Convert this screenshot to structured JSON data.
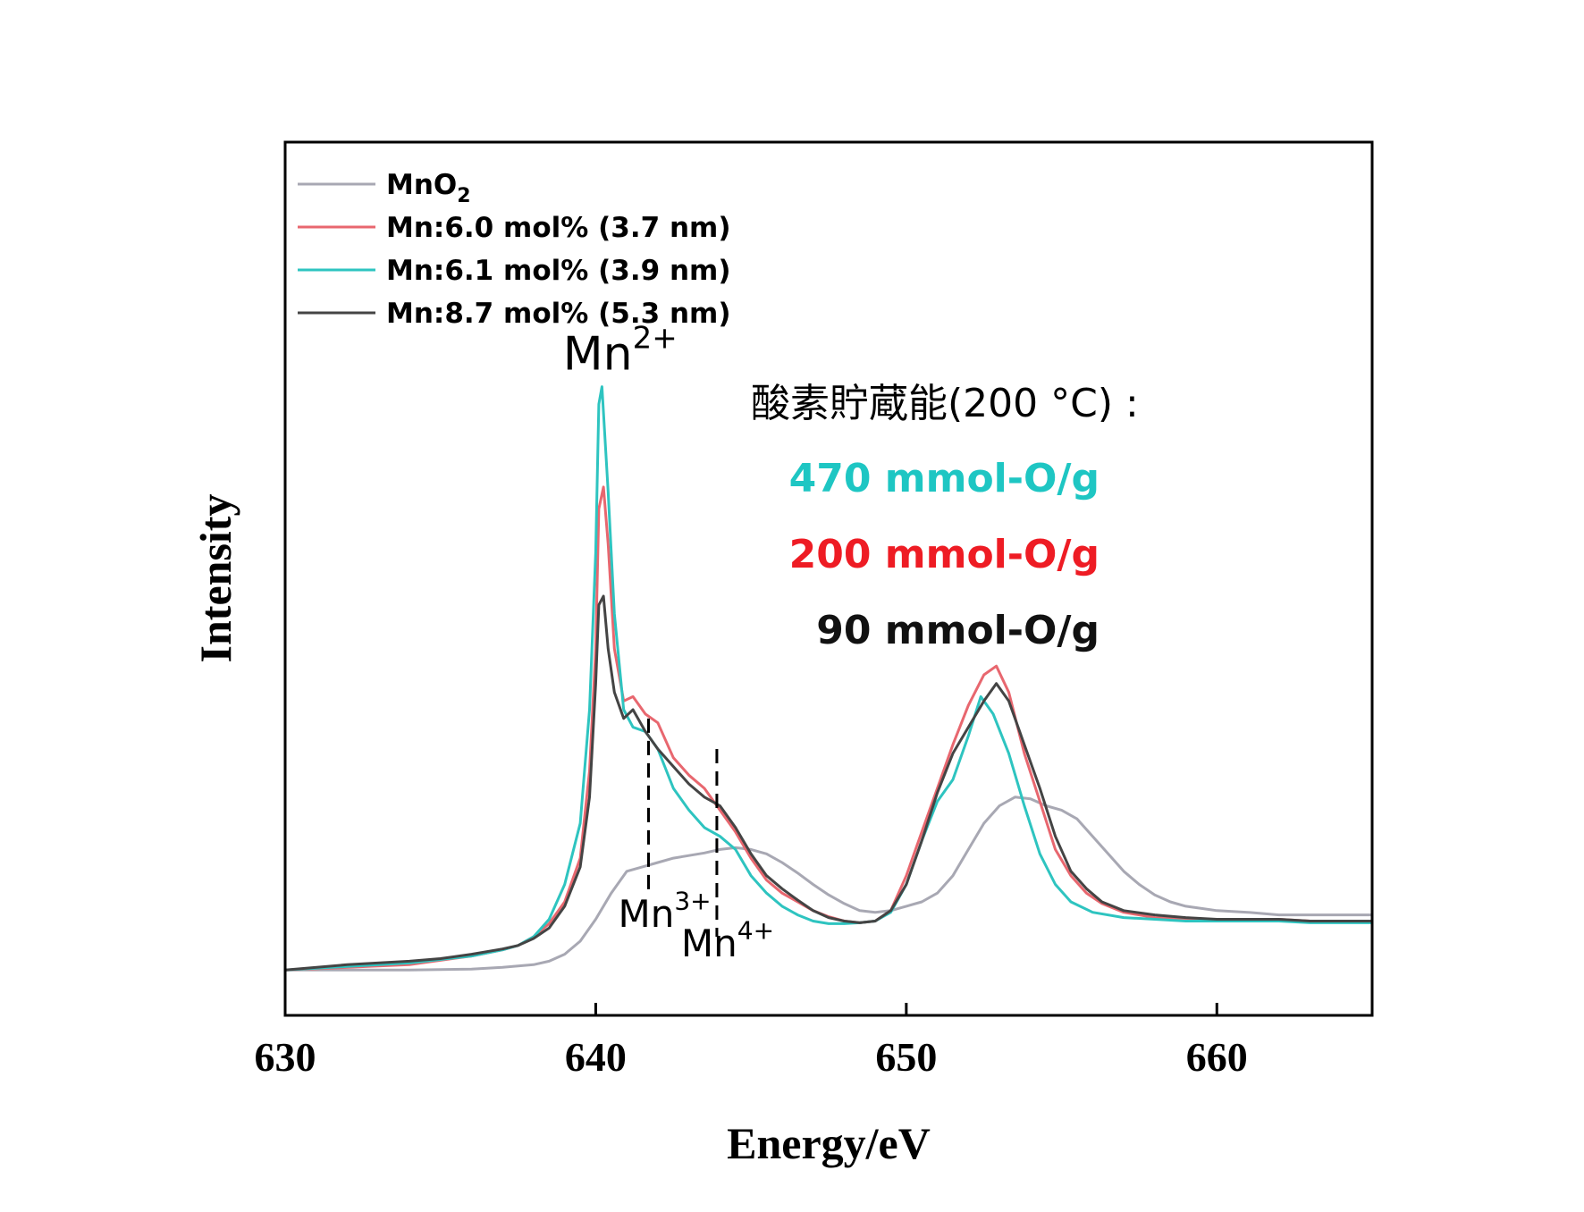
{
  "chart_data": {
    "type": "line",
    "title": "",
    "xlabel": "Energy/eV",
    "ylabel": "Intensity",
    "xlim": [
      630,
      665
    ],
    "ylim": [
      0,
      1.0
    ],
    "xticks": [
      630,
      640,
      650,
      660
    ],
    "grid": false,
    "legend_position": "top-left",
    "series": [
      {
        "name": "MnO",
        "name_sub": "2",
        "color": "#a8a8b3",
        "points": [
          [
            630,
            0.052
          ],
          [
            632,
            0.052
          ],
          [
            634,
            0.052
          ],
          [
            636,
            0.053
          ],
          [
            637,
            0.055
          ],
          [
            638,
            0.058
          ],
          [
            638.5,
            0.062
          ],
          [
            639,
            0.07
          ],
          [
            639.5,
            0.085
          ],
          [
            640,
            0.11
          ],
          [
            640.5,
            0.14
          ],
          [
            641,
            0.165
          ],
          [
            641.5,
            0.17
          ],
          [
            642,
            0.175
          ],
          [
            642.5,
            0.18
          ],
          [
            643,
            0.183
          ],
          [
            643.5,
            0.186
          ],
          [
            644,
            0.19
          ],
          [
            644.5,
            0.192
          ],
          [
            645,
            0.19
          ],
          [
            645.5,
            0.185
          ],
          [
            646,
            0.175
          ],
          [
            646.5,
            0.163
          ],
          [
            647,
            0.15
          ],
          [
            647.5,
            0.138
          ],
          [
            648,
            0.128
          ],
          [
            648.5,
            0.12
          ],
          [
            649,
            0.118
          ],
          [
            649.5,
            0.12
          ],
          [
            650,
            0.125
          ],
          [
            650.5,
            0.13
          ],
          [
            651,
            0.14
          ],
          [
            651.5,
            0.16
          ],
          [
            652,
            0.19
          ],
          [
            652.5,
            0.22
          ],
          [
            653,
            0.24
          ],
          [
            653.5,
            0.25
          ],
          [
            654,
            0.248
          ],
          [
            654.5,
            0.24
          ],
          [
            655,
            0.235
          ],
          [
            655.5,
            0.225
          ],
          [
            656,
            0.205
          ],
          [
            656.5,
            0.185
          ],
          [
            657,
            0.165
          ],
          [
            657.5,
            0.15
          ],
          [
            658,
            0.138
          ],
          [
            658.5,
            0.13
          ],
          [
            659,
            0.125
          ],
          [
            660,
            0.12
          ],
          [
            661,
            0.118
          ],
          [
            662,
            0.115
          ],
          [
            663,
            0.115
          ],
          [
            665,
            0.115
          ]
        ]
      },
      {
        "name": "Mn:6.0 mol% (3.7 nm)",
        "color": "#e8676f",
        "points": [
          [
            630,
            0.052
          ],
          [
            632,
            0.055
          ],
          [
            634,
            0.058
          ],
          [
            635,
            0.063
          ],
          [
            636,
            0.068
          ],
          [
            637,
            0.075
          ],
          [
            637.5,
            0.08
          ],
          [
            638,
            0.09
          ],
          [
            638.5,
            0.105
          ],
          [
            639,
            0.13
          ],
          [
            639.5,
            0.18
          ],
          [
            639.8,
            0.28
          ],
          [
            640,
            0.42
          ],
          [
            640.1,
            0.58
          ],
          [
            640.25,
            0.605
          ],
          [
            640.4,
            0.54
          ],
          [
            640.6,
            0.42
          ],
          [
            640.9,
            0.36
          ],
          [
            641.2,
            0.365
          ],
          [
            641.6,
            0.345
          ],
          [
            642,
            0.335
          ],
          [
            642.5,
            0.295
          ],
          [
            643,
            0.275
          ],
          [
            643.5,
            0.26
          ],
          [
            644,
            0.235
          ],
          [
            644.5,
            0.21
          ],
          [
            645,
            0.18
          ],
          [
            645.5,
            0.155
          ],
          [
            646,
            0.14
          ],
          [
            646.5,
            0.13
          ],
          [
            647,
            0.12
          ],
          [
            647.5,
            0.113
          ],
          [
            648,
            0.108
          ],
          [
            648.5,
            0.106
          ],
          [
            649,
            0.108
          ],
          [
            649.5,
            0.12
          ],
          [
            650,
            0.16
          ],
          [
            650.5,
            0.21
          ],
          [
            651,
            0.26
          ],
          [
            651.5,
            0.31
          ],
          [
            652,
            0.355
          ],
          [
            652.5,
            0.39
          ],
          [
            652.9,
            0.4
          ],
          [
            653.3,
            0.37
          ],
          [
            653.8,
            0.3
          ],
          [
            654.3,
            0.245
          ],
          [
            654.8,
            0.19
          ],
          [
            655.3,
            0.16
          ],
          [
            655.8,
            0.14
          ],
          [
            656.3,
            0.128
          ],
          [
            657,
            0.118
          ],
          [
            658,
            0.112
          ],
          [
            659,
            0.11
          ],
          [
            660,
            0.11
          ],
          [
            661,
            0.11
          ],
          [
            662,
            0.11
          ],
          [
            663,
            0.108
          ],
          [
            664,
            0.108
          ],
          [
            665,
            0.108
          ]
        ]
      },
      {
        "name": "Mn:6.1 mol% (3.9 nm)",
        "color": "#2ec4c0",
        "points": [
          [
            630,
            0.052
          ],
          [
            632,
            0.056
          ],
          [
            634,
            0.06
          ],
          [
            635,
            0.064
          ],
          [
            636,
            0.068
          ],
          [
            637,
            0.075
          ],
          [
            637.5,
            0.08
          ],
          [
            638,
            0.09
          ],
          [
            638.5,
            0.11
          ],
          [
            639,
            0.15
          ],
          [
            639.5,
            0.22
          ],
          [
            639.8,
            0.35
          ],
          [
            640,
            0.53
          ],
          [
            640.1,
            0.7
          ],
          [
            640.2,
            0.72
          ],
          [
            640.4,
            0.6
          ],
          [
            640.6,
            0.46
          ],
          [
            640.9,
            0.35
          ],
          [
            641.2,
            0.33
          ],
          [
            641.6,
            0.325
          ],
          [
            642,
            0.305
          ],
          [
            642.5,
            0.26
          ],
          [
            643,
            0.235
          ],
          [
            643.5,
            0.215
          ],
          [
            644,
            0.205
          ],
          [
            644.5,
            0.19
          ],
          [
            645,
            0.16
          ],
          [
            645.5,
            0.14
          ],
          [
            646,
            0.125
          ],
          [
            646.5,
            0.115
          ],
          [
            647,
            0.108
          ],
          [
            647.5,
            0.105
          ],
          [
            648,
            0.105
          ],
          [
            648.5,
            0.106
          ],
          [
            649,
            0.108
          ],
          [
            649.5,
            0.118
          ],
          [
            650,
            0.15
          ],
          [
            650.5,
            0.2
          ],
          [
            651,
            0.245
          ],
          [
            651.5,
            0.27
          ],
          [
            652,
            0.32
          ],
          [
            652.4,
            0.365
          ],
          [
            652.8,
            0.345
          ],
          [
            653.3,
            0.3
          ],
          [
            653.8,
            0.24
          ],
          [
            654.3,
            0.185
          ],
          [
            654.8,
            0.15
          ],
          [
            655.3,
            0.13
          ],
          [
            656,
            0.118
          ],
          [
            657,
            0.112
          ],
          [
            658,
            0.11
          ],
          [
            659,
            0.108
          ],
          [
            660,
            0.108
          ],
          [
            661,
            0.108
          ],
          [
            662,
            0.108
          ],
          [
            663,
            0.106
          ],
          [
            664,
            0.106
          ],
          [
            665,
            0.106
          ]
        ]
      },
      {
        "name": "Mn:8.7 mol% (5.3 nm)",
        "color": "#444444",
        "points": [
          [
            630,
            0.052
          ],
          [
            632,
            0.058
          ],
          [
            634,
            0.062
          ],
          [
            635,
            0.065
          ],
          [
            636,
            0.07
          ],
          [
            637,
            0.076
          ],
          [
            637.5,
            0.08
          ],
          [
            638,
            0.088
          ],
          [
            638.5,
            0.1
          ],
          [
            639,
            0.125
          ],
          [
            639.5,
            0.17
          ],
          [
            639.8,
            0.25
          ],
          [
            640,
            0.38
          ],
          [
            640.1,
            0.47
          ],
          [
            640.25,
            0.48
          ],
          [
            640.4,
            0.42
          ],
          [
            640.6,
            0.37
          ],
          [
            640.9,
            0.34
          ],
          [
            641.2,
            0.35
          ],
          [
            641.6,
            0.325
          ],
          [
            642,
            0.305
          ],
          [
            642.5,
            0.285
          ],
          [
            643,
            0.265
          ],
          [
            643.5,
            0.25
          ],
          [
            644,
            0.24
          ],
          [
            644.5,
            0.215
          ],
          [
            645,
            0.185
          ],
          [
            645.5,
            0.16
          ],
          [
            646,
            0.145
          ],
          [
            646.5,
            0.132
          ],
          [
            647,
            0.12
          ],
          [
            647.5,
            0.112
          ],
          [
            648,
            0.108
          ],
          [
            648.5,
            0.106
          ],
          [
            649,
            0.108
          ],
          [
            649.5,
            0.12
          ],
          [
            650,
            0.15
          ],
          [
            650.5,
            0.2
          ],
          [
            651,
            0.255
          ],
          [
            651.5,
            0.3
          ],
          [
            652,
            0.33
          ],
          [
            652.5,
            0.36
          ],
          [
            652.9,
            0.38
          ],
          [
            653.3,
            0.36
          ],
          [
            653.8,
            0.31
          ],
          [
            654.3,
            0.26
          ],
          [
            654.8,
            0.205
          ],
          [
            655.3,
            0.165
          ],
          [
            655.8,
            0.145
          ],
          [
            656.3,
            0.13
          ],
          [
            657,
            0.12
          ],
          [
            658,
            0.115
          ],
          [
            659,
            0.112
          ],
          [
            660,
            0.11
          ],
          [
            661,
            0.11
          ],
          [
            662,
            0.11
          ],
          [
            663,
            0.108
          ],
          [
            664,
            0.108
          ],
          [
            665,
            0.108
          ]
        ]
      }
    ],
    "annotations": {
      "mn2": {
        "label": "Mn",
        "sup": "2+",
        "x": 640.5,
        "y": 0.76
      },
      "mn3": {
        "label": "Mn",
        "sup": "3+",
        "x_line": 641.7,
        "line_top": 0.34,
        "line_bottom": 0.14
      },
      "mn4": {
        "label": "Mn",
        "sup": "4+",
        "x_line": 643.9,
        "line_top": 0.305,
        "line_bottom": 0.09
      }
    },
    "osc": {
      "title": "酸素貯蔵能(200 °C) :",
      "values": [
        {
          "text": "470 mmol-O/g",
          "color": "#1ec6c3"
        },
        {
          "text": "200 mmol-O/g",
          "color": "#ee1c24"
        },
        {
          "text": "90 mmol-O/g",
          "color": "#111111"
        }
      ]
    }
  }
}
